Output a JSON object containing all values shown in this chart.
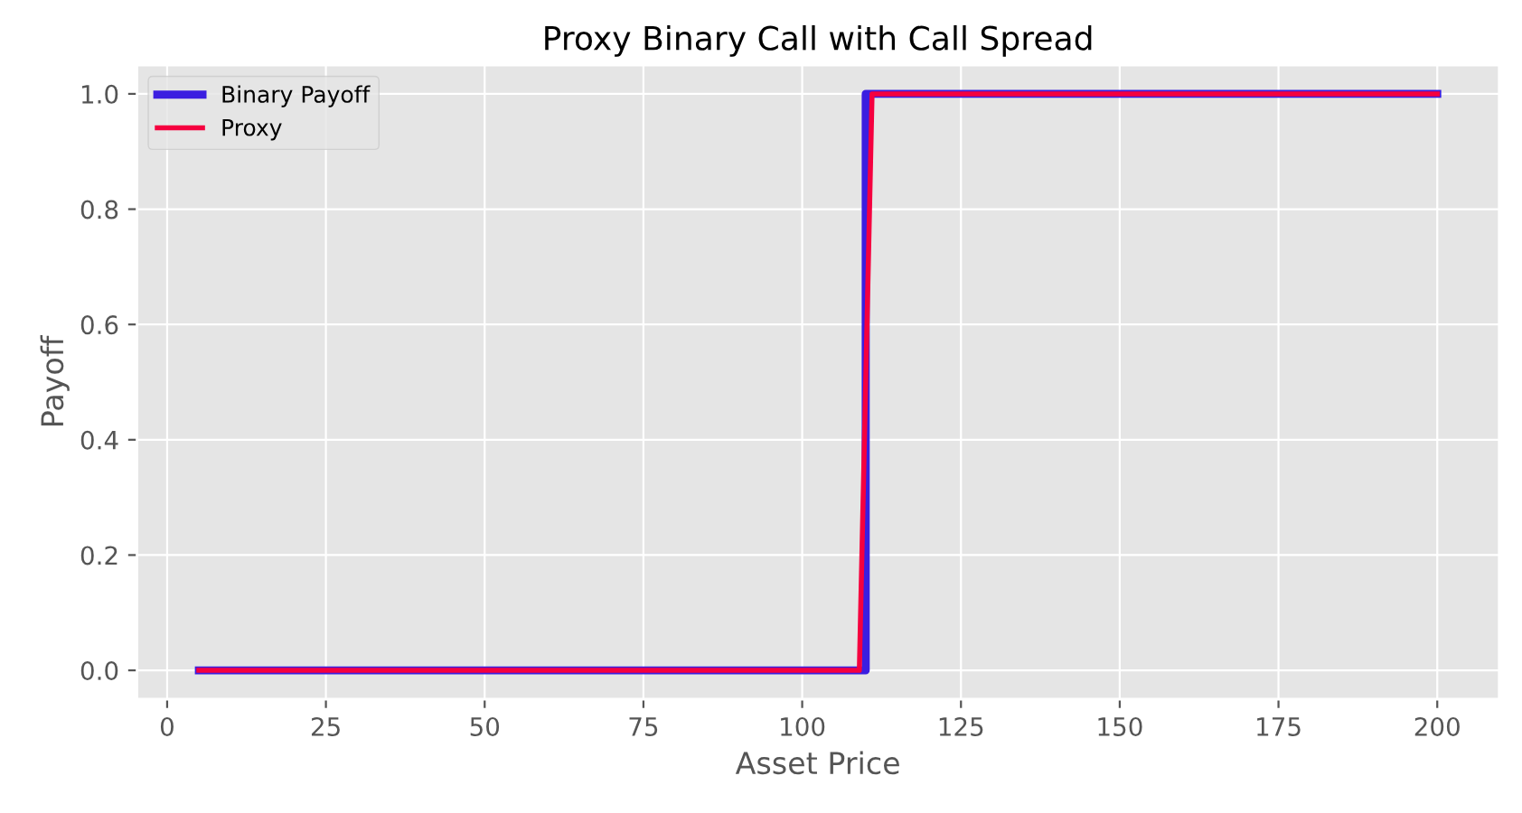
{
  "chart_data": {
    "type": "line",
    "title": "Proxy Binary Call with Call Spread",
    "xlabel": "Asset Price",
    "ylabel": "Payoff",
    "series": [
      {
        "name": "Binary Payoff",
        "color": "#3b1ee0",
        "x": [
          5,
          110,
          110,
          200
        ],
        "values": [
          0,
          0,
          1,
          1
        ]
      },
      {
        "name": "Proxy",
        "color": "#f5003f",
        "x": [
          5,
          109,
          111,
          200
        ],
        "values": [
          0,
          0,
          1,
          1
        ]
      }
    ],
    "xlim": [
      -4.75,
      209.75
    ],
    "ylim": [
      -0.05,
      1.05
    ],
    "xticks": [
      0,
      25,
      50,
      75,
      100,
      125,
      150,
      175,
      200
    ],
    "yticks": [
      {
        "value": 0,
        "label": "0.0"
      },
      {
        "value": 0.2,
        "label": "0.2"
      },
      {
        "value": 0.4,
        "label": "0.4"
      },
      {
        "value": 0.6,
        "label": "0.6"
      },
      {
        "value": 0.8,
        "label": "0.8"
      },
      {
        "value": 1,
        "label": "1.0"
      }
    ],
    "grid": true,
    "legend": "top left",
    "line_style": "solid",
    "marker": "none"
  }
}
